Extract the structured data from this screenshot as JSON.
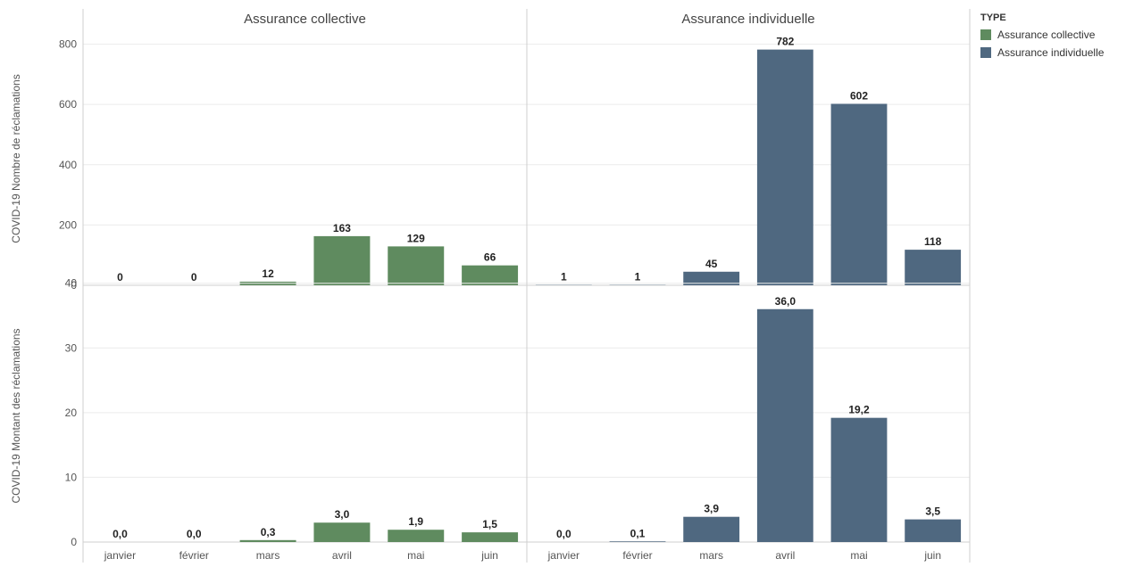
{
  "chart_data": {
    "type": "bar",
    "columns": [
      "Assurance collective",
      "Assurance individuelle"
    ],
    "categories": [
      "janvier",
      "février",
      "mars",
      "avril",
      "mai",
      "juin"
    ],
    "rows": [
      {
        "ylabel": "COVID-19 Nombre de réclamations",
        "ylim": [
          0,
          840
        ],
        "ticks": [
          0,
          200,
          400,
          600,
          800
        ],
        "tick_labels": [
          "0",
          "200",
          "400",
          "600",
          "800"
        ],
        "series": [
          {
            "name": "Assurance collective",
            "values": [
              0,
              0,
              12,
              163,
              129,
              66
            ],
            "labels": [
              "0",
              "0",
              "12",
              "163",
              "129",
              "66"
            ]
          },
          {
            "name": "Assurance individuelle",
            "values": [
              1,
              1,
              45,
              782,
              602,
              118
            ],
            "labels": [
              "1",
              "1",
              "45",
              "782",
              "602",
              "118"
            ]
          }
        ]
      },
      {
        "ylabel": "COVID-19 Montant des réclamations",
        "ylim": [
          0,
          39
        ],
        "ticks": [
          0,
          10,
          20,
          30,
          40
        ],
        "tick_labels": [
          "0",
          "10",
          "20",
          "30",
          "40"
        ],
        "series": [
          {
            "name": "Assurance collective",
            "values": [
              0.0,
              0.0,
              0.3,
              3.0,
              1.9,
              1.5
            ],
            "labels": [
              "0,0",
              "0,0",
              "0,3",
              "3,0",
              "1,9",
              "1,5"
            ]
          },
          {
            "name": "Assurance individuelle",
            "values": [
              0.0,
              0.1,
              3.9,
              36.0,
              19.2,
              3.5
            ],
            "labels": [
              "0,0",
              "0,1",
              "3,9",
              "36,0",
              "19,2",
              "3,5"
            ]
          }
        ]
      }
    ],
    "legend": {
      "title": "TYPE",
      "position": "top-right",
      "items": [
        {
          "label": "Assurance collective",
          "color": "#5f8b5f"
        },
        {
          "label": "Assurance individuelle",
          "color": "#4f6880"
        }
      ]
    },
    "grid": true
  }
}
